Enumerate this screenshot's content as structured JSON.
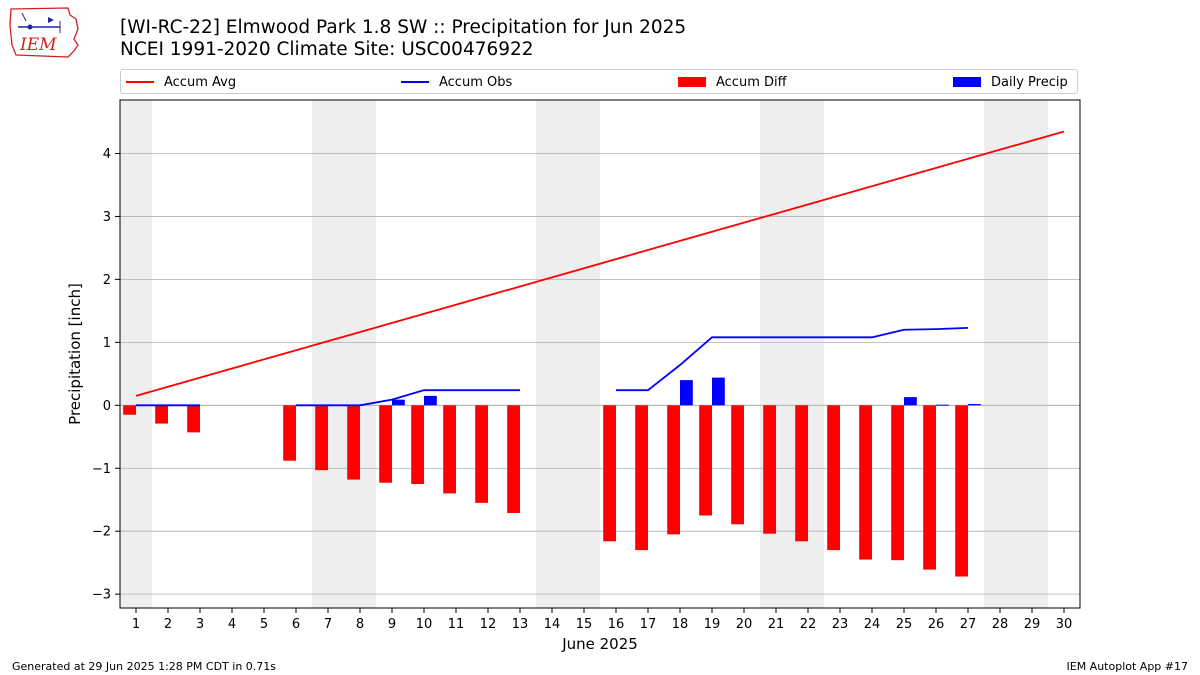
{
  "header": {
    "title_line1": "[WI-RC-22] Elmwood Park 1.8 SW :: Precipitation for Jun 2025",
    "title_line2": "NCEI 1991-2020 Climate Site: USC00476922",
    "logo_text": "IEM"
  },
  "footer": {
    "left": "Generated at 29 Jun 2025 1:28 PM CDT in 0.71s",
    "right": "IEM Autoplot App #17"
  },
  "colors": {
    "avg": "#ff0000",
    "obs": "#0000ff",
    "diff": "#ff0000",
    "daily": "#0000ff",
    "weekend_shade": "#eeeeee",
    "grid": "#b0b0b0"
  },
  "chart_data": {
    "type": "bar",
    "xlabel": "June 2025",
    "ylabel": "Precipitation [inch]",
    "xlim": [
      0.5,
      30.5
    ],
    "ylim": [
      -3.22,
      4.85
    ],
    "yticks": [
      -3,
      -2,
      -1,
      0,
      1,
      2,
      3,
      4
    ],
    "ytick_labels": [
      "−3",
      "−2",
      "−1",
      "0",
      "1",
      "2",
      "3",
      "4"
    ],
    "x": [
      1,
      2,
      3,
      4,
      5,
      6,
      7,
      8,
      9,
      10,
      11,
      12,
      13,
      14,
      15,
      16,
      17,
      18,
      19,
      20,
      21,
      22,
      23,
      24,
      25,
      26,
      27,
      28,
      29,
      30
    ],
    "grid": "horizontal",
    "legend_position": "top",
    "weekend_days": [
      1,
      7,
      8,
      14,
      15,
      21,
      22,
      28,
      29
    ],
    "legend": [
      "Accum Avg",
      "Accum Obs",
      "Accum Diff",
      "Daily Precip"
    ],
    "series": [
      {
        "name": "Accum Avg",
        "kind": "line",
        "x_start": 1,
        "x_end": 30,
        "y_start": 0.15,
        "y_end": 4.35
      },
      {
        "name": "Accum Obs",
        "kind": "line",
        "segments": [
          [
            [
              1,
              0.0
            ],
            [
              2,
              0.0
            ],
            [
              3,
              0.0
            ]
          ],
          [
            [
              6,
              0.0
            ],
            [
              7,
              0.0
            ],
            [
              8,
              0.0
            ],
            [
              9,
              0.09
            ],
            [
              10,
              0.24
            ],
            [
              11,
              0.24
            ],
            [
              12,
              0.24
            ],
            [
              13,
              0.24
            ]
          ],
          [
            [
              16,
              0.24
            ],
            [
              17,
              0.24
            ],
            [
              18,
              0.64
            ],
            [
              19,
              1.08
            ],
            [
              20,
              1.08
            ],
            [
              21,
              1.08
            ],
            [
              22,
              1.08
            ],
            [
              23,
              1.08
            ],
            [
              24,
              1.08
            ],
            [
              25,
              1.2
            ],
            [
              26,
              1.21
            ],
            [
              27,
              1.23
            ]
          ]
        ]
      },
      {
        "name": "Accum Diff",
        "kind": "bar",
        "points": [
          [
            1,
            -0.15
          ],
          [
            2,
            -0.29
          ],
          [
            3,
            -0.43
          ],
          [
            6,
            -0.88
          ],
          [
            7,
            -1.03
          ],
          [
            8,
            -1.18
          ],
          [
            9,
            -1.23
          ],
          [
            10,
            -1.25
          ],
          [
            11,
            -1.4
          ],
          [
            12,
            -1.55
          ],
          [
            13,
            -1.71
          ],
          [
            16,
            -2.16
          ],
          [
            17,
            -2.3
          ],
          [
            18,
            -2.05
          ],
          [
            19,
            -1.75
          ],
          [
            20,
            -1.89
          ],
          [
            21,
            -2.04
          ],
          [
            22,
            -2.16
          ],
          [
            23,
            -2.3
          ],
          [
            24,
            -2.45
          ],
          [
            25,
            -2.46
          ],
          [
            26,
            -2.61
          ],
          [
            27,
            -2.72
          ]
        ]
      },
      {
        "name": "Daily Precip",
        "kind": "bar",
        "points": [
          [
            9,
            0.09
          ],
          [
            10,
            0.15
          ],
          [
            18,
            0.4
          ],
          [
            19,
            0.44
          ],
          [
            25,
            0.13
          ],
          [
            26,
            0.01
          ],
          [
            27,
            0.02
          ]
        ]
      }
    ]
  }
}
